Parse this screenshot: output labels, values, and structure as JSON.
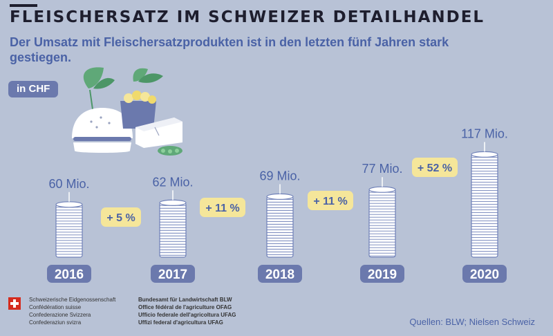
{
  "header": {
    "title": "FLEISCHERSATZ IM SCHWEIZER DETAILHANDEL",
    "subtitle": "Der Umsatz mit Fleischersatzprodukten ist in den letzten fünf Jahren stark gestiegen.",
    "unit": "in CHF"
  },
  "chart_data": {
    "type": "bar",
    "categories": [
      "2016",
      "2017",
      "2018",
      "2019",
      "2020"
    ],
    "values": [
      60,
      62,
      69,
      77,
      117
    ],
    "value_labels": [
      "60 Mio.",
      "62 Mio.",
      "69 Mio.",
      "77 Mio.",
      "117 Mio."
    ],
    "growth_labels": [
      "+ 5 %",
      "+ 11 %",
      "+ 11 %",
      "+ 52 %"
    ]
  },
  "colors": {
    "background": "#b8c2d6",
    "title": "#1e1e2e",
    "accent": "#4a62a6",
    "year_pill": "#6b79ad",
    "growth_pill": "#f5e69a",
    "coin_stroke": "#6f80b8"
  },
  "footer": {
    "federation": [
      "Schweizerische Eidgenossenschaft",
      "Confédération suisse",
      "Confederazione Svizzera",
      "Confederaziun svizra"
    ],
    "agency": [
      "Bundesamt für Landwirtschaft BLW",
      "Office fédéral de l'agriculture OFAG",
      "Ufficio federale dell'agricoltura UFAG",
      "Uffizi federal d'agricultura UFAG"
    ],
    "sources": "Quellen: BLW; Nielsen Schweiz"
  }
}
